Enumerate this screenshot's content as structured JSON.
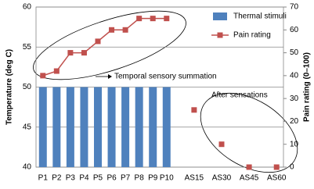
{
  "chart_data": {
    "type": "combo",
    "categories": [
      "P1",
      "P2",
      "P3",
      "P4",
      "P5",
      "P6",
      "P7",
      "P8",
      "P9",
      "P10",
      null,
      "AS15",
      null,
      "AS30",
      null,
      "AS45",
      null,
      "AS60"
    ],
    "series": [
      {
        "name": "Thermal stimuli",
        "type": "bar",
        "color": "#4f81bd",
        "axis": "y",
        "values": [
          50,
          50,
          50,
          50,
          50,
          50,
          50,
          50,
          50,
          50,
          null,
          null,
          null,
          null,
          null,
          null,
          null,
          null
        ]
      },
      {
        "name": "Pain rating",
        "type": "line",
        "color": "#c0504d",
        "axis": "y2",
        "values": [
          40,
          42,
          50,
          50,
          55,
          60,
          60,
          65,
          65,
          65,
          null,
          25,
          null,
          10,
          null,
          0,
          null,
          0
        ]
      }
    ],
    "y_label": "Temperature (deg C)",
    "y2_label": "Pain rating (0–100)",
    "ylim": [
      40,
      60
    ],
    "yticks": [
      40,
      45,
      50,
      55,
      60
    ],
    "y2lim": [
      0,
      70
    ],
    "y2ticks": [
      0,
      10,
      20,
      30,
      40,
      50,
      60,
      70
    ],
    "grid": true,
    "legend": "upper right",
    "annotations": [
      "Temporal sensory summation",
      "After sensations"
    ]
  }
}
